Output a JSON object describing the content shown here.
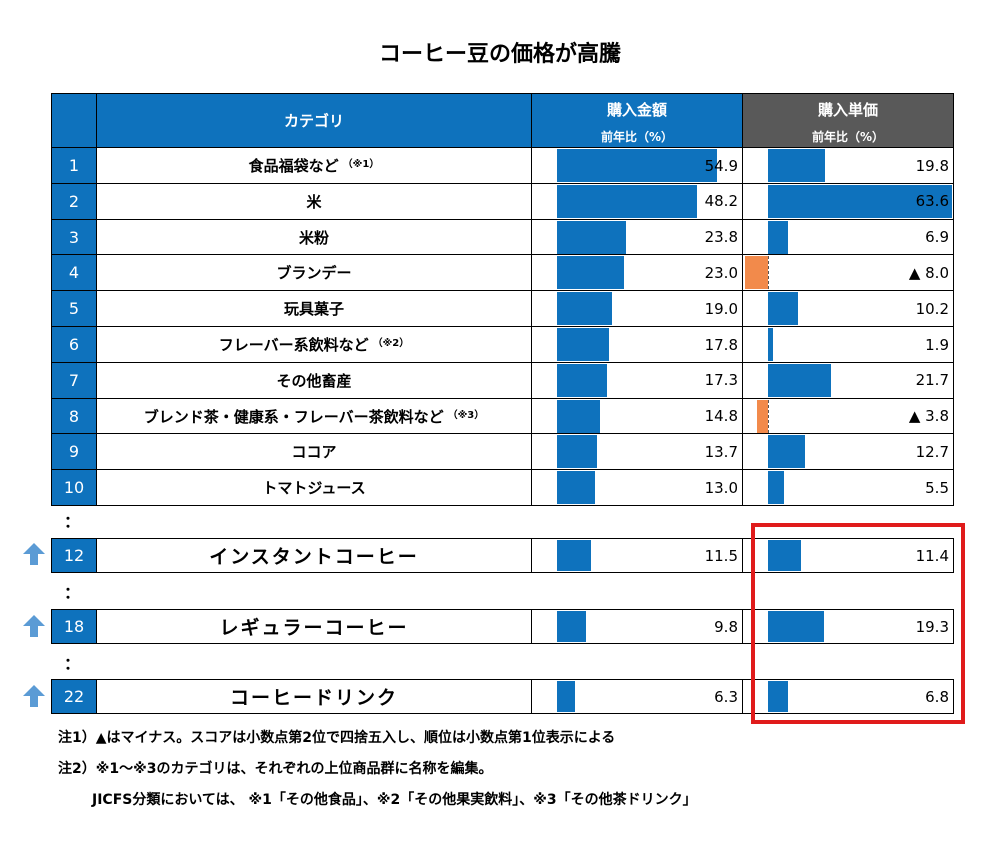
{
  "title": "コーヒー豆の価格が高騰",
  "header": {
    "category": "カテゴリ",
    "amount_title": "購入金額",
    "amount_sub": "前年比（%）",
    "price_title": "購入単価",
    "price_sub": "前年比（%）"
  },
  "colors": {
    "header_blue": "#0e72bd",
    "header_gray": "#595959",
    "bar_positive": "#0e72bd",
    "bar_negative": "#f28a4b",
    "highlight": "#e01b1b",
    "arrow": "#5b9bd5"
  },
  "chart_data": {
    "type": "table",
    "title": "コーヒー豆の価格が高騰",
    "columns": [
      "カテゴリ",
      "購入金額 前年比（%）",
      "購入単価 前年比（%）"
    ],
    "amount_max": 54.9,
    "price_max": 63.6,
    "rows": [
      {
        "rank": "1",
        "category": "食品福袋など",
        "note": "（※1）",
        "amount": 54.9,
        "amount_label": "54.9",
        "price": 19.8,
        "price_label": "19.8"
      },
      {
        "rank": "2",
        "category": "米",
        "note": "",
        "amount": 48.2,
        "amount_label": "48.2",
        "price": 63.6,
        "price_label": "63.6"
      },
      {
        "rank": "3",
        "category": "米粉",
        "note": "",
        "amount": 23.8,
        "amount_label": "23.8",
        "price": 6.9,
        "price_label": "6.9"
      },
      {
        "rank": "4",
        "category": "ブランデー",
        "note": "",
        "amount": 23.0,
        "amount_label": "23.0",
        "price": -8.0,
        "price_label": "▲ 8.0"
      },
      {
        "rank": "5",
        "category": "玩具菓子",
        "note": "",
        "amount": 19.0,
        "amount_label": "19.0",
        "price": 10.2,
        "price_label": "10.2"
      },
      {
        "rank": "6",
        "category": "フレーバー系飲料など",
        "note": "（※2）",
        "amount": 17.8,
        "amount_label": "17.8",
        "price": 1.9,
        "price_label": "1.9"
      },
      {
        "rank": "7",
        "category": "その他畜産",
        "note": "",
        "amount": 17.3,
        "amount_label": "17.3",
        "price": 21.7,
        "price_label": "21.7"
      },
      {
        "rank": "8",
        "category": "ブレンド茶・健康系・フレーバー茶飲料など",
        "note": "（※3）",
        "amount": 14.8,
        "amount_label": "14.8",
        "price": -3.8,
        "price_label": "▲ 3.8"
      },
      {
        "rank": "9",
        "category": "ココア",
        "note": "",
        "amount": 13.7,
        "amount_label": "13.7",
        "price": 12.7,
        "price_label": "12.7"
      },
      {
        "rank": "10",
        "category": "トマトジュース",
        "note": "",
        "amount": 13.0,
        "amount_label": "13.0",
        "price": 5.5,
        "price_label": "5.5"
      }
    ],
    "highlighted_rows": [
      {
        "rank": "12",
        "category": "インスタントコーヒー",
        "amount": 11.5,
        "amount_label": "11.5",
        "price": 11.4,
        "price_label": "11.4"
      },
      {
        "rank": "18",
        "category": "レギュラーコーヒー",
        "amount": 9.8,
        "amount_label": "9.8",
        "price": 19.3,
        "price_label": "19.3"
      },
      {
        "rank": "22",
        "category": "コーヒードリンク",
        "amount": 6.3,
        "amount_label": "6.3",
        "price": 6.8,
        "price_label": "6.8"
      }
    ]
  },
  "ellipsis": "：",
  "notes": [
    "注1）▲はマイナス。スコアは小数点第2位で四捨五入し、順位は小数点第1位表示による",
    "注2）※1〜※3のカテゴリは、それぞれの上位商品群に名称を編集。",
    "JICFS分類においては、 ※1「その他食品」、※2「その他果実飲料」、※3「その他茶ドリンク」"
  ]
}
